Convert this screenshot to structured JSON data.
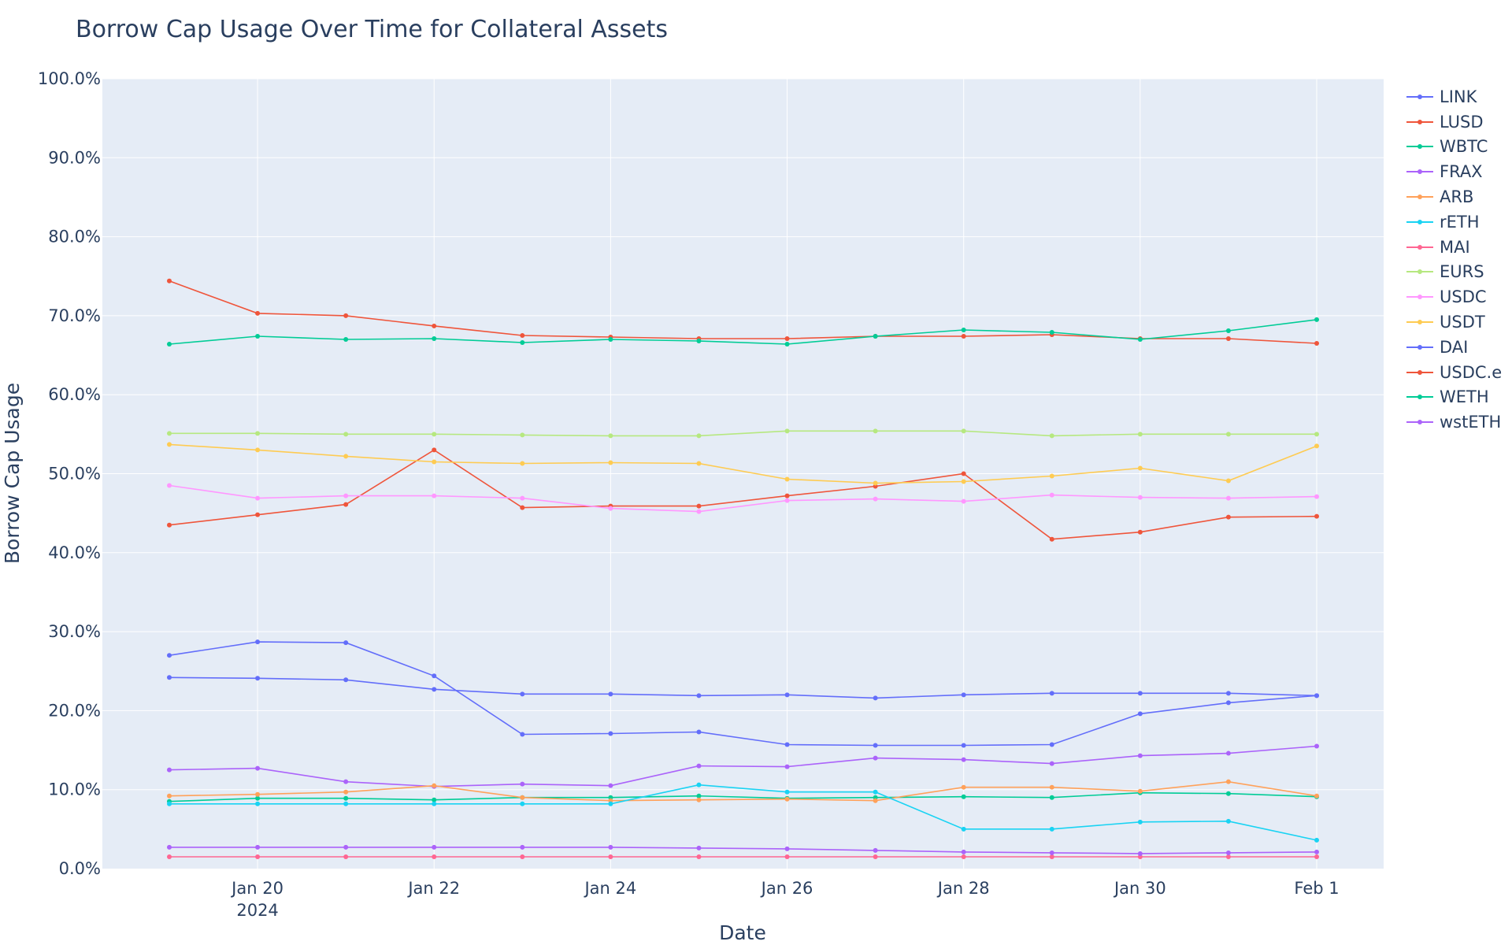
{
  "chart_data": {
    "type": "line",
    "title": "Borrow Cap Usage Over Time for Collateral Assets",
    "xlabel": "Date",
    "ylabel": "Borrow Cap Usage",
    "ylim": [
      0,
      100
    ],
    "y_tick_labels": [
      "0.0%",
      "10.0%",
      "20.0%",
      "30.0%",
      "40.0%",
      "50.0%",
      "60.0%",
      "70.0%",
      "80.0%",
      "90.0%",
      "100.0%"
    ],
    "x_tick_labels": [
      "Jan 20",
      "Jan 22",
      "Jan 24",
      "Jan 26",
      "Jan 28",
      "Jan 30",
      "Feb 1"
    ],
    "x_tick_year": "2024",
    "grid": true,
    "legend_position": "right",
    "x": [
      "2024-01-19",
      "2024-01-20",
      "2024-01-21",
      "2024-01-22",
      "2024-01-23",
      "2024-01-24",
      "2024-01-25",
      "2024-01-26",
      "2024-01-27",
      "2024-01-28",
      "2024-01-29",
      "2024-01-30",
      "2024-01-31",
      "2024-02-01"
    ],
    "series": [
      {
        "name": "LINK",
        "color": "#636efa",
        "values": [
          27.0,
          28.7,
          28.6,
          24.4,
          17.0,
          17.1,
          17.3,
          15.7,
          15.6,
          15.6,
          15.7,
          19.6,
          21.0,
          21.9
        ]
      },
      {
        "name": "LUSD",
        "color": "#EF553B",
        "values": [
          43.5,
          44.8,
          46.1,
          53.0,
          45.7,
          45.9,
          45.9,
          47.2,
          48.4,
          50.0,
          41.7,
          42.6,
          44.5,
          44.6
        ]
      },
      {
        "name": "WBTC",
        "color": "#00cc96",
        "values": [
          8.5,
          8.9,
          8.9,
          8.7,
          9.0,
          9.0,
          9.2,
          8.9,
          9.0,
          9.1,
          9.0,
          9.6,
          9.5,
          9.1
        ]
      },
      {
        "name": "FRAX",
        "color": "#ab63fa",
        "values": [
          12.5,
          12.7,
          11.0,
          10.4,
          10.7,
          10.5,
          13.0,
          12.9,
          14.0,
          13.8,
          13.3,
          14.3,
          14.6,
          15.5
        ]
      },
      {
        "name": "ARB",
        "color": "#FFA15A",
        "values": [
          9.2,
          9.4,
          9.7,
          10.5,
          9.0,
          8.6,
          8.7,
          8.8,
          8.6,
          10.3,
          10.3,
          9.8,
          11.0,
          9.2
        ]
      },
      {
        "name": "rETH",
        "color": "#19d3f3",
        "values": [
          8.2,
          8.2,
          8.2,
          8.2,
          8.2,
          8.2,
          10.6,
          9.7,
          9.7,
          5.0,
          5.0,
          5.9,
          6.0,
          3.6
        ]
      },
      {
        "name": "MAI",
        "color": "#FF6692",
        "values": [
          1.5,
          1.5,
          1.5,
          1.5,
          1.5,
          1.5,
          1.5,
          1.5,
          1.5,
          1.5,
          1.5,
          1.5,
          1.5,
          1.5
        ]
      },
      {
        "name": "EURS",
        "color": "#B6E880",
        "values": [
          55.1,
          55.1,
          55.0,
          55.0,
          54.9,
          54.8,
          54.8,
          55.4,
          55.4,
          55.4,
          54.8,
          55.0,
          55.0,
          55.0
        ]
      },
      {
        "name": "USDC",
        "color": "#FF97FF",
        "values": [
          48.5,
          46.9,
          47.2,
          47.2,
          46.9,
          45.6,
          45.2,
          46.6,
          46.8,
          46.5,
          47.3,
          47.0,
          46.9,
          47.1
        ]
      },
      {
        "name": "USDT",
        "color": "#FECB52",
        "values": [
          53.7,
          53.0,
          52.2,
          51.5,
          51.3,
          51.4,
          51.3,
          49.3,
          48.8,
          49.0,
          49.7,
          50.7,
          49.1,
          53.5
        ]
      },
      {
        "name": "DAI",
        "color": "#636efa",
        "values": [
          24.2,
          24.1,
          23.9,
          22.7,
          22.1,
          22.1,
          21.9,
          22.0,
          21.6,
          22.0,
          22.2,
          22.2,
          22.2,
          21.9
        ]
      },
      {
        "name": "USDC.e",
        "color": "#EF553B",
        "values": [
          74.4,
          70.3,
          70.0,
          68.7,
          67.5,
          67.3,
          67.1,
          67.1,
          67.4,
          67.4,
          67.6,
          67.1,
          67.1,
          66.5
        ]
      },
      {
        "name": "WETH",
        "color": "#00cc96",
        "values": [
          66.4,
          67.4,
          67.0,
          67.1,
          66.6,
          67.0,
          66.8,
          66.4,
          67.4,
          68.2,
          67.9,
          67.0,
          68.1,
          69.5
        ]
      },
      {
        "name": "wstETH",
        "color": "#ab63fa",
        "values": [
          2.7,
          2.7,
          2.7,
          2.7,
          2.7,
          2.7,
          2.6,
          2.5,
          2.3,
          2.1,
          2.0,
          1.9,
          2.0,
          2.1
        ]
      }
    ]
  }
}
